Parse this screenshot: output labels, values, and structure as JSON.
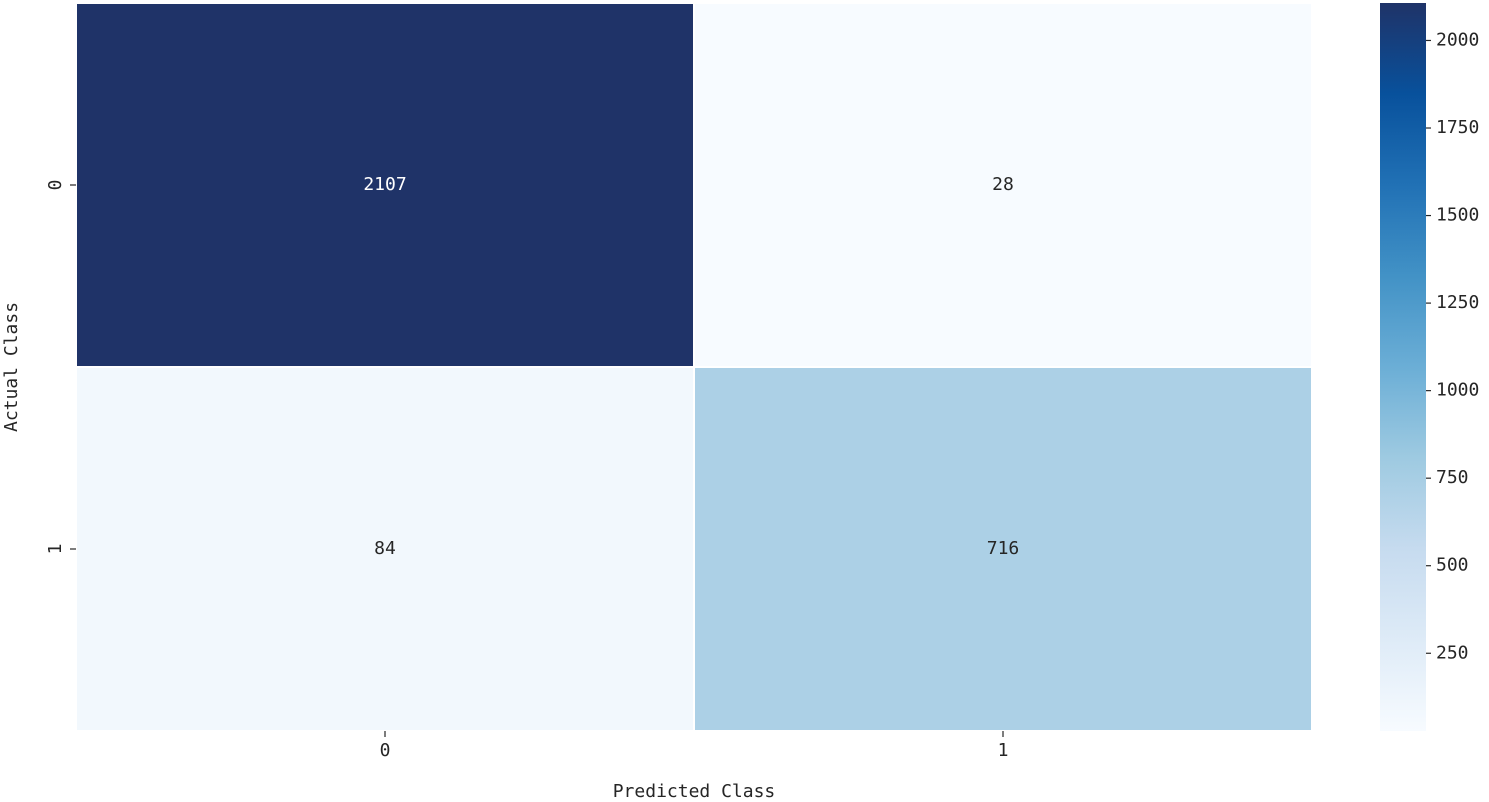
{
  "chart_data": {
    "type": "heatmap",
    "x_categories": [
      "0",
      "1"
    ],
    "y_categories": [
      "0",
      "1"
    ],
    "values": [
      [
        2107,
        28
      ],
      [
        84,
        716
      ]
    ],
    "xlabel": "Predicted Class",
    "ylabel": "Actual Class",
    "clim": [
      28,
      2107
    ],
    "cticks": [
      250,
      500,
      750,
      1000,
      1250,
      1500,
      1750,
      2000
    ],
    "colormap": [
      "#f7fbff",
      "#deebf7",
      "#c6dbef",
      "#9ecae1",
      "#6baed6",
      "#4292c6",
      "#2171b5",
      "#08519c",
      "#1f3368"
    ]
  }
}
